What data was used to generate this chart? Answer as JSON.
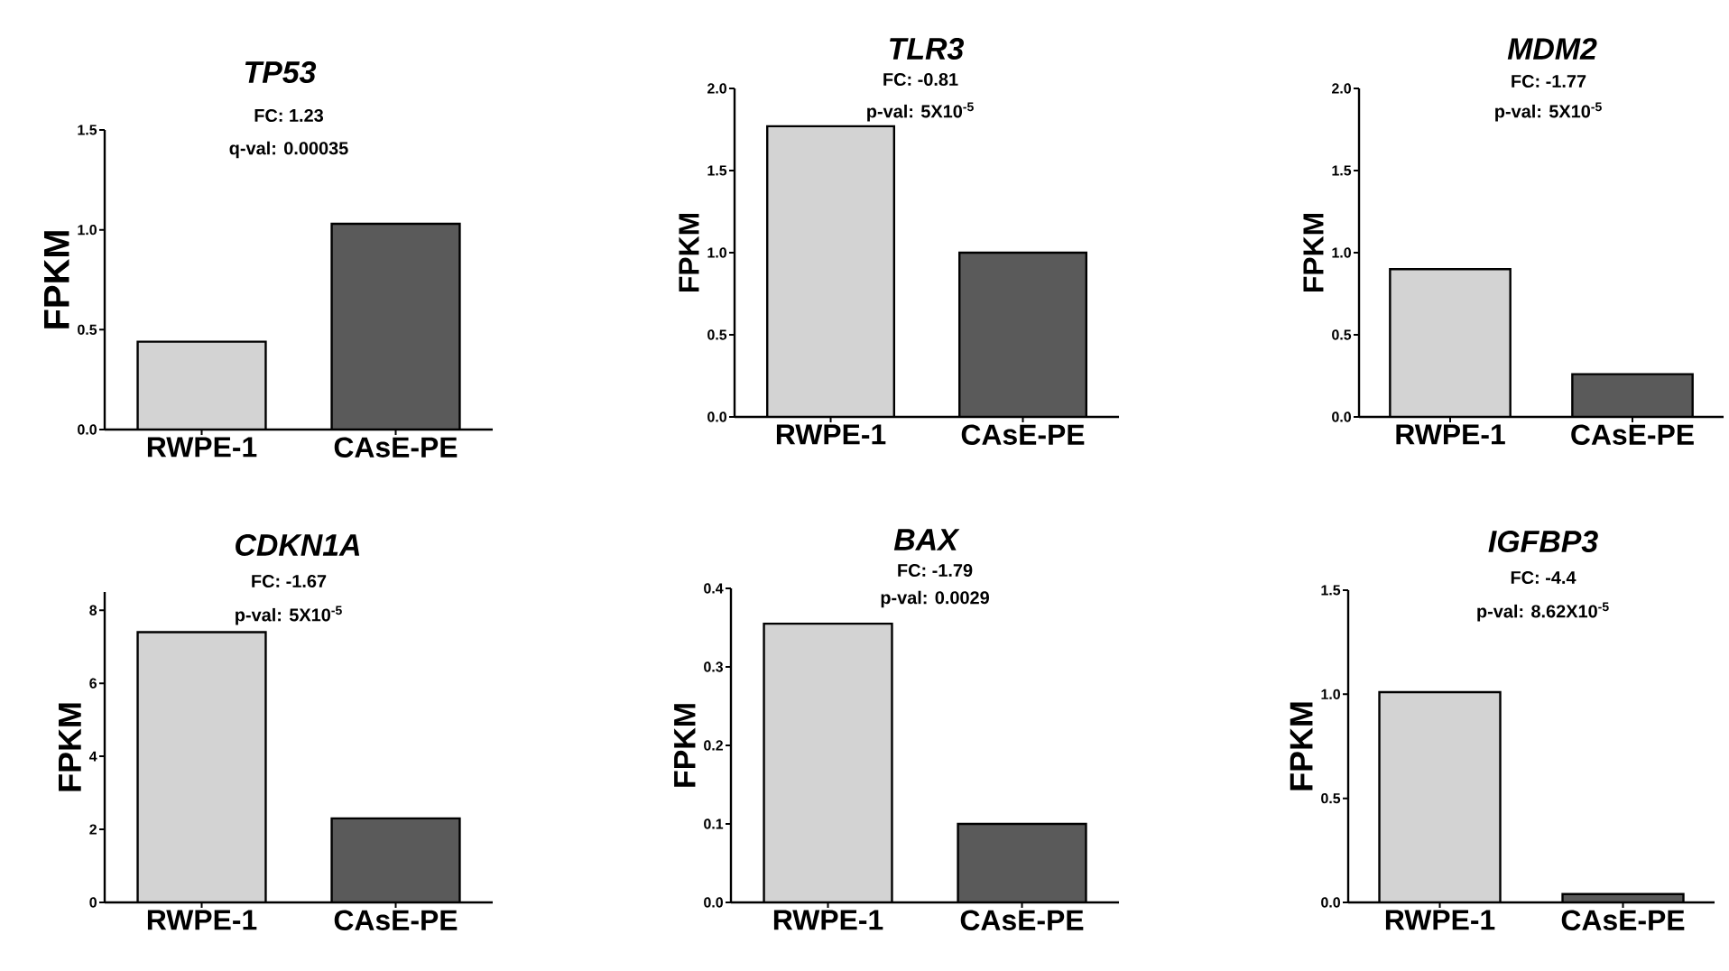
{
  "chart_data": [
    {
      "type": "bar",
      "title": "TP53",
      "annotations": [
        "FC: 1.23",
        "q-val: 0.00035"
      ],
      "ylabel": "FPKM",
      "categories": [
        "RWPE-1",
        "CAsE-PE"
      ],
      "values": [
        0.44,
        1.03
      ],
      "colors": [
        "#d3d3d3",
        "#5a5a5a"
      ],
      "ylim": [
        0,
        1.5
      ],
      "yticks": [
        {
          "value": 0,
          "label": "0.0"
        },
        {
          "value": 0.5,
          "label": "0.5"
        },
        {
          "value": 1,
          "label": "1.0"
        },
        {
          "value": 1.5,
          "label": "1.5"
        }
      ]
    },
    {
      "type": "bar",
      "title": "TLR3",
      "annotations": [
        "FC: -0.81",
        "p-val: 5X10$^{-5}$"
      ],
      "ylabel": "FPKM",
      "categories": [
        "RWPE-1",
        "CAsE-PE"
      ],
      "values": [
        1.77,
        1.0
      ],
      "colors": [
        "#d3d3d3",
        "#5a5a5a"
      ],
      "ylim": [
        0,
        2
      ],
      "yticks": [
        {
          "value": 0,
          "label": "0.0"
        },
        {
          "value": 0.5,
          "label": "0.5"
        },
        {
          "value": 1,
          "label": "1.0"
        },
        {
          "value": 1.5,
          "label": "1.5"
        },
        {
          "value": 2,
          "label": "2.0"
        }
      ]
    },
    {
      "type": "bar",
      "title": "MDM2",
      "annotations": [
        "FC: -1.77",
        "p-val: 5X10$^{-5}$"
      ],
      "ylabel": "FPKM",
      "categories": [
        "RWPE-1",
        "CAsE-PE"
      ],
      "values": [
        0.9,
        0.26
      ],
      "colors": [
        "#d3d3d3",
        "#5a5a5a"
      ],
      "ylim": [
        0,
        2
      ],
      "yticks": [
        {
          "value": 0,
          "label": "0.0"
        },
        {
          "value": 0.5,
          "label": "0.5"
        },
        {
          "value": 1,
          "label": "1.0"
        },
        {
          "value": 1.5,
          "label": "1.5"
        },
        {
          "value": 2,
          "label": "2.0"
        }
      ]
    },
    {
      "type": "bar",
      "title": "CDKN1A",
      "annotations": [
        "FC: -1.67",
        "p-val: 5X10$^{-5}$"
      ],
      "ylabel": "FPKM",
      "categories": [
        "RWPE-1",
        "CAsE-PE"
      ],
      "values": [
        7.4,
        2.3
      ],
      "colors": [
        "#d3d3d3",
        "#5a5a5a"
      ],
      "ylim": [
        0,
        8.5
      ],
      "yticks": [
        0,
        2,
        4,
        6,
        8
      ]
    },
    {
      "type": "bar",
      "title": "BAX",
      "annotations": [
        "FC: -1.79",
        "p-val: 0.0029"
      ],
      "ylabel": "FPKM",
      "categories": [
        "RWPE-1",
        "CAsE-PE"
      ],
      "values": [
        0.355,
        0.1
      ],
      "colors": [
        "#d3d3d3",
        "#5a5a5a"
      ],
      "ylim": [
        0,
        0.4
      ],
      "yticks": [
        {
          "value": 0,
          "label": "0.0"
        },
        {
          "value": 0.1,
          "label": "0.1"
        },
        {
          "value": 0.2,
          "label": "0.2"
        },
        {
          "value": 0.3,
          "label": "0.3"
        },
        {
          "value": 0.4,
          "label": "0.4"
        }
      ]
    },
    {
      "type": "bar",
      "title": "IGFBP3",
      "annotations": [
        "FC: -4.4",
        "p-val: 8.62X10$^{-5}$"
      ],
      "ylabel": "FPKM",
      "categories": [
        "RWPE-1",
        "CAsE-PE"
      ],
      "values": [
        1.01,
        0.04
      ],
      "colors": [
        "#d3d3d3",
        "#5a5a5a"
      ],
      "ylim": [
        0,
        1.5
      ],
      "yticks": [
        {
          "value": 0,
          "label": "0.0"
        },
        {
          "value": 0.5,
          "label": "0.5"
        },
        {
          "value": 1,
          "label": "1.0"
        },
        {
          "value": 1.5,
          "label": "1.5"
        }
      ]
    }
  ]
}
